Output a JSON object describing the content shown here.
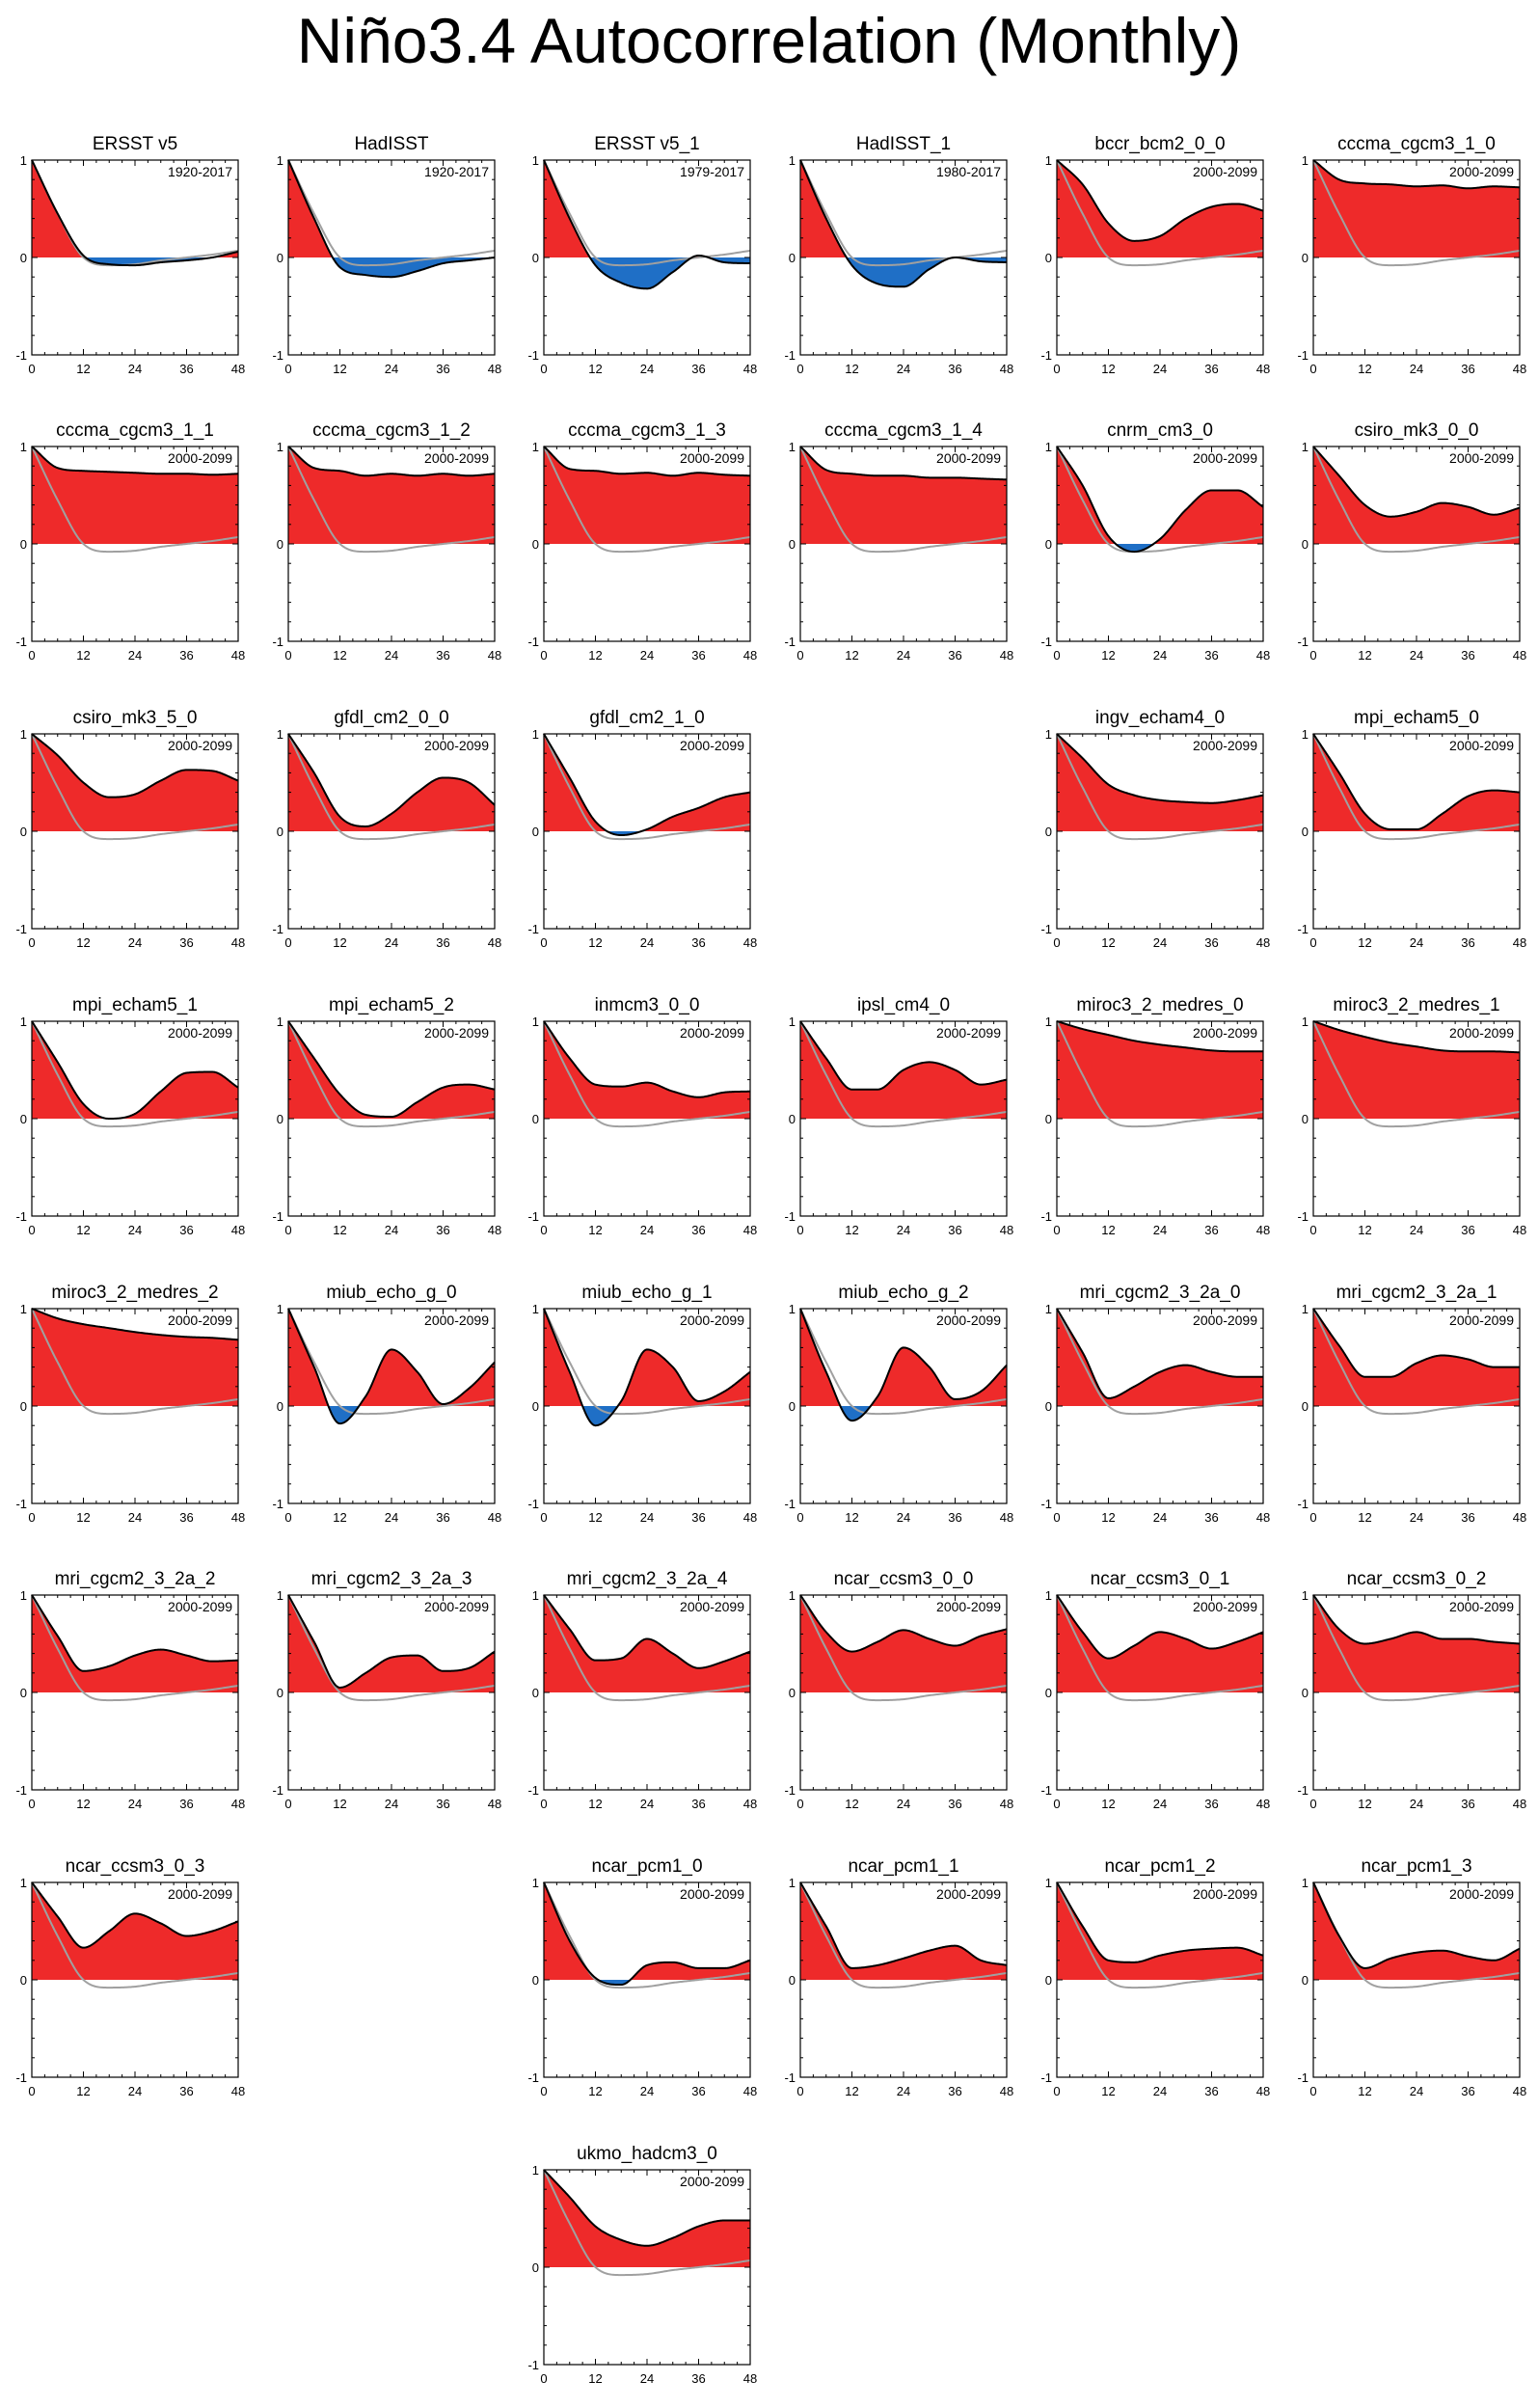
{
  "title": "Niño3.4 Autocorrelation (Monthly)",
  "colors": {
    "positive": "#ee2a2a",
    "negative": "#1f6fc6",
    "reference": "#a0a0a0",
    "curve": "#000000"
  },
  "chart_data": {
    "type": "area",
    "x_ticks": [
      0,
      12,
      24,
      36,
      48
    ],
    "y_ticks": [
      1,
      0,
      -1
    ],
    "xlim": [
      0,
      48
    ],
    "ylim": [
      -1,
      1
    ],
    "grid": false,
    "reference_curve": {
      "x": [
        0,
        6,
        12,
        18,
        24,
        30,
        36,
        42,
        48
      ],
      "y": [
        1,
        0.45,
        0.0,
        -0.08,
        -0.07,
        -0.03,
        0.0,
        0.03,
        0.07
      ]
    },
    "panels": [
      {
        "name": "ERSST v5",
        "period": "1920-2017",
        "row": 0,
        "col": 0,
        "x": [
          0,
          6,
          12,
          18,
          24,
          30,
          36,
          42,
          48
        ],
        "y": [
          1,
          0.45,
          0.02,
          -0.07,
          -0.08,
          -0.05,
          -0.03,
          0.0,
          0.06
        ]
      },
      {
        "name": "HadISST",
        "period": "1920-2017",
        "row": 0,
        "col": 1,
        "x": [
          0,
          6,
          12,
          18,
          24,
          30,
          36,
          42,
          48
        ],
        "y": [
          1,
          0.4,
          -0.1,
          -0.18,
          -0.2,
          -0.14,
          -0.06,
          -0.03,
          0.0
        ]
      },
      {
        "name": "ERSST v5_1",
        "period": "1979-2017",
        "row": 0,
        "col": 2,
        "x": [
          0,
          6,
          12,
          18,
          24,
          30,
          36,
          42,
          48
        ],
        "y": [
          1,
          0.4,
          -0.08,
          -0.26,
          -0.32,
          -0.15,
          0.02,
          -0.05,
          -0.06
        ]
      },
      {
        "name": "HadISST_1",
        "period": "1980-2017",
        "row": 0,
        "col": 3,
        "x": [
          0,
          6,
          12,
          18,
          24,
          30,
          36,
          42,
          48
        ],
        "y": [
          1,
          0.4,
          -0.08,
          -0.27,
          -0.3,
          -0.12,
          0.0,
          -0.04,
          -0.05
        ]
      },
      {
        "name": "bccr_bcm2_0_0",
        "period": "2000-2099",
        "row": 0,
        "col": 4,
        "x": [
          0,
          6,
          12,
          18,
          24,
          30,
          36,
          42,
          48
        ],
        "y": [
          1,
          0.75,
          0.35,
          0.17,
          0.22,
          0.4,
          0.52,
          0.55,
          0.48
        ]
      },
      {
        "name": "cccma_cgcm3_1_0",
        "period": "2000-2099",
        "row": 0,
        "col": 5,
        "x": [
          0,
          6,
          12,
          18,
          24,
          30,
          36,
          42,
          48
        ],
        "y": [
          1,
          0.8,
          0.76,
          0.75,
          0.73,
          0.74,
          0.71,
          0.73,
          0.72
        ]
      },
      {
        "name": "cccma_cgcm3_1_1",
        "period": "2000-2099",
        "row": 1,
        "col": 0,
        "x": [
          0,
          6,
          12,
          18,
          24,
          30,
          36,
          42,
          48
        ],
        "y": [
          1,
          0.78,
          0.75,
          0.74,
          0.73,
          0.72,
          0.72,
          0.71,
          0.72
        ]
      },
      {
        "name": "cccma_cgcm3_1_2",
        "period": "2000-2099",
        "row": 1,
        "col": 1,
        "x": [
          0,
          6,
          12,
          18,
          24,
          30,
          36,
          42,
          48
        ],
        "y": [
          1,
          0.78,
          0.75,
          0.7,
          0.72,
          0.7,
          0.72,
          0.7,
          0.72
        ]
      },
      {
        "name": "cccma_cgcm3_1_3",
        "period": "2000-2099",
        "row": 1,
        "col": 2,
        "x": [
          0,
          6,
          12,
          18,
          24,
          30,
          36,
          42,
          48
        ],
        "y": [
          1,
          0.77,
          0.75,
          0.72,
          0.73,
          0.7,
          0.73,
          0.71,
          0.7
        ]
      },
      {
        "name": "cccma_cgcm3_1_4",
        "period": "2000-2099",
        "row": 1,
        "col": 3,
        "x": [
          0,
          6,
          12,
          18,
          24,
          30,
          36,
          42,
          48
        ],
        "y": [
          1,
          0.76,
          0.72,
          0.7,
          0.7,
          0.68,
          0.68,
          0.67,
          0.66
        ]
      },
      {
        "name": "cnrm_cm3_0",
        "period": "2000-2099",
        "row": 1,
        "col": 4,
        "x": [
          0,
          6,
          12,
          18,
          24,
          30,
          36,
          42,
          48
        ],
        "y": [
          1,
          0.6,
          0.08,
          -0.08,
          0.05,
          0.35,
          0.55,
          0.55,
          0.38
        ]
      },
      {
        "name": "csiro_mk3_0_0",
        "period": "2000-2099",
        "row": 1,
        "col": 5,
        "x": [
          0,
          6,
          12,
          18,
          24,
          30,
          36,
          42,
          48
        ],
        "y": [
          1,
          0.7,
          0.4,
          0.28,
          0.33,
          0.42,
          0.38,
          0.3,
          0.37
        ]
      },
      {
        "name": "csiro_mk3_5_0",
        "period": "2000-2099",
        "row": 2,
        "col": 0,
        "x": [
          0,
          6,
          12,
          18,
          24,
          30,
          36,
          42,
          48
        ],
        "y": [
          1,
          0.78,
          0.5,
          0.35,
          0.38,
          0.52,
          0.63,
          0.62,
          0.52
        ]
      },
      {
        "name": "gfdl_cm2_0_0",
        "period": "2000-2099",
        "row": 2,
        "col": 1,
        "x": [
          0,
          6,
          12,
          18,
          24,
          30,
          36,
          42,
          48
        ],
        "y": [
          1,
          0.6,
          0.15,
          0.05,
          0.18,
          0.4,
          0.55,
          0.5,
          0.27
        ]
      },
      {
        "name": "gfdl_cm2_1_0",
        "period": "2000-2099",
        "row": 2,
        "col": 2,
        "x": [
          0,
          6,
          12,
          18,
          24,
          30,
          36,
          42,
          48
        ],
        "y": [
          1,
          0.55,
          0.1,
          -0.04,
          0.02,
          0.15,
          0.24,
          0.35,
          0.4
        ]
      },
      {
        "name": "ingv_echam4_0",
        "period": "2000-2099",
        "row": 2,
        "col": 4,
        "x": [
          0,
          6,
          12,
          18,
          24,
          30,
          36,
          42,
          48
        ],
        "y": [
          1,
          0.75,
          0.48,
          0.37,
          0.32,
          0.3,
          0.29,
          0.32,
          0.37
        ]
      },
      {
        "name": "mpi_echam5_0",
        "period": "2000-2099",
        "row": 2,
        "col": 5,
        "x": [
          0,
          6,
          12,
          18,
          24,
          30,
          36,
          42,
          48
        ],
        "y": [
          1,
          0.6,
          0.18,
          0.02,
          0.02,
          0.18,
          0.36,
          0.42,
          0.4
        ]
      },
      {
        "name": "mpi_echam5_1",
        "period": "2000-2099",
        "row": 3,
        "col": 0,
        "x": [
          0,
          6,
          12,
          18,
          24,
          30,
          36,
          42,
          48
        ],
        "y": [
          1,
          0.58,
          0.15,
          0.0,
          0.05,
          0.28,
          0.47,
          0.48,
          0.32
        ]
      },
      {
        "name": "mpi_echam5_2",
        "period": "2000-2099",
        "row": 3,
        "col": 1,
        "x": [
          0,
          6,
          12,
          18,
          24,
          30,
          36,
          42,
          48
        ],
        "y": [
          1,
          0.62,
          0.25,
          0.04,
          0.02,
          0.17,
          0.32,
          0.35,
          0.3
        ]
      },
      {
        "name": "inmcm3_0_0",
        "period": "2000-2099",
        "row": 3,
        "col": 2,
        "x": [
          0,
          6,
          12,
          18,
          24,
          30,
          36,
          42,
          48
        ],
        "y": [
          1,
          0.62,
          0.35,
          0.33,
          0.37,
          0.28,
          0.22,
          0.27,
          0.28
        ]
      },
      {
        "name": "ipsl_cm4_0",
        "period": "2000-2099",
        "row": 3,
        "col": 3,
        "x": [
          0,
          6,
          12,
          18,
          24,
          30,
          36,
          42,
          48
        ],
        "y": [
          1,
          0.62,
          0.3,
          0.3,
          0.5,
          0.58,
          0.5,
          0.35,
          0.4
        ]
      },
      {
        "name": "miroc3_2_medres_0",
        "period": "2000-2099",
        "row": 3,
        "col": 4,
        "x": [
          0,
          6,
          12,
          18,
          24,
          30,
          36,
          42,
          48
        ],
        "y": [
          1,
          0.92,
          0.86,
          0.8,
          0.76,
          0.73,
          0.7,
          0.69,
          0.69
        ]
      },
      {
        "name": "miroc3_2_medres_1",
        "period": "2000-2099",
        "row": 3,
        "col": 5,
        "x": [
          0,
          6,
          12,
          18,
          24,
          30,
          36,
          42,
          48
        ],
        "y": [
          1,
          0.91,
          0.84,
          0.78,
          0.74,
          0.7,
          0.69,
          0.69,
          0.68
        ]
      },
      {
        "name": "miroc3_2_medres_2",
        "period": "2000-2099",
        "row": 4,
        "col": 0,
        "x": [
          0,
          6,
          12,
          18,
          24,
          30,
          36,
          42,
          48
        ],
        "y": [
          1,
          0.9,
          0.84,
          0.8,
          0.76,
          0.73,
          0.71,
          0.7,
          0.68
        ]
      },
      {
        "name": "miub_echo_g_0",
        "period": "2000-2099",
        "row": 4,
        "col": 1,
        "x": [
          0,
          6,
          12,
          18,
          24,
          30,
          36,
          42,
          48
        ],
        "y": [
          1,
          0.4,
          -0.18,
          0.1,
          0.58,
          0.35,
          0.02,
          0.18,
          0.45
        ]
      },
      {
        "name": "miub_echo_g_1",
        "period": "2000-2099",
        "row": 4,
        "col": 2,
        "x": [
          0,
          6,
          12,
          18,
          24,
          30,
          36,
          42,
          48
        ],
        "y": [
          1,
          0.35,
          -0.2,
          0.05,
          0.58,
          0.4,
          0.05,
          0.15,
          0.35
        ]
      },
      {
        "name": "miub_echo_g_2",
        "period": "2000-2099",
        "row": 4,
        "col": 3,
        "x": [
          0,
          6,
          12,
          18,
          24,
          30,
          36,
          42,
          48
        ],
        "y": [
          1,
          0.35,
          -0.15,
          0.1,
          0.6,
          0.4,
          0.07,
          0.15,
          0.42
        ]
      },
      {
        "name": "mri_cgcm2_3_2a_0",
        "period": "2000-2099",
        "row": 4,
        "col": 4,
        "x": [
          0,
          6,
          12,
          18,
          24,
          30,
          36,
          42,
          48
        ],
        "y": [
          1,
          0.55,
          0.08,
          0.2,
          0.35,
          0.42,
          0.35,
          0.3,
          0.3
        ]
      },
      {
        "name": "mri_cgcm2_3_2a_1",
        "period": "2000-2099",
        "row": 4,
        "col": 5,
        "x": [
          0,
          6,
          12,
          18,
          24,
          30,
          36,
          42,
          48
        ],
        "y": [
          1,
          0.62,
          0.3,
          0.3,
          0.44,
          0.52,
          0.48,
          0.4,
          0.4
        ]
      },
      {
        "name": "mri_cgcm2_3_2a_2",
        "period": "2000-2099",
        "row": 5,
        "col": 0,
        "x": [
          0,
          6,
          12,
          18,
          24,
          30,
          36,
          42,
          48
        ],
        "y": [
          1,
          0.58,
          0.22,
          0.27,
          0.38,
          0.44,
          0.38,
          0.32,
          0.33
        ]
      },
      {
        "name": "mri_cgcm2_3_2a_3",
        "period": "2000-2099",
        "row": 5,
        "col": 1,
        "x": [
          0,
          6,
          12,
          18,
          24,
          30,
          36,
          42,
          48
        ],
        "y": [
          1,
          0.52,
          0.05,
          0.2,
          0.36,
          0.38,
          0.22,
          0.25,
          0.42
        ]
      },
      {
        "name": "mri_cgcm2_3_2a_4",
        "period": "2000-2099",
        "row": 5,
        "col": 2,
        "x": [
          0,
          6,
          12,
          18,
          24,
          30,
          36,
          42,
          48
        ],
        "y": [
          1,
          0.65,
          0.33,
          0.35,
          0.55,
          0.4,
          0.25,
          0.32,
          0.42
        ]
      },
      {
        "name": "ncar_ccsm3_0_0",
        "period": "2000-2099",
        "row": 5,
        "col": 3,
        "x": [
          0,
          6,
          12,
          18,
          24,
          30,
          36,
          42,
          48
        ],
        "y": [
          1,
          0.62,
          0.42,
          0.52,
          0.64,
          0.55,
          0.48,
          0.58,
          0.65
        ]
      },
      {
        "name": "ncar_ccsm3_0_1",
        "period": "2000-2099",
        "row": 5,
        "col": 4,
        "x": [
          0,
          6,
          12,
          18,
          24,
          30,
          36,
          42,
          48
        ],
        "y": [
          1,
          0.62,
          0.35,
          0.48,
          0.62,
          0.55,
          0.45,
          0.52,
          0.62
        ]
      },
      {
        "name": "ncar_ccsm3_0_2",
        "period": "2000-2099",
        "row": 5,
        "col": 5,
        "x": [
          0,
          6,
          12,
          18,
          24,
          30,
          36,
          42,
          48
        ],
        "y": [
          1,
          0.65,
          0.5,
          0.55,
          0.62,
          0.55,
          0.55,
          0.52,
          0.5
        ]
      },
      {
        "name": "ncar_ccsm3_0_3",
        "period": "2000-2099",
        "row": 6,
        "col": 0,
        "x": [
          0,
          6,
          12,
          18,
          24,
          30,
          36,
          42,
          48
        ],
        "y": [
          1,
          0.65,
          0.33,
          0.5,
          0.68,
          0.58,
          0.45,
          0.5,
          0.6
        ]
      },
      {
        "name": "ncar_pcm1_0",
        "period": "2000-2099",
        "row": 6,
        "col": 2,
        "x": [
          0,
          6,
          12,
          18,
          24,
          30,
          36,
          42,
          48
        ],
        "y": [
          1,
          0.4,
          0.02,
          -0.05,
          0.15,
          0.18,
          0.12,
          0.12,
          0.2
        ]
      },
      {
        "name": "ncar_pcm1_1",
        "period": "2000-2099",
        "row": 6,
        "col": 3,
        "x": [
          0,
          6,
          12,
          18,
          24,
          30,
          36,
          42,
          48
        ],
        "y": [
          1,
          0.55,
          0.12,
          0.15,
          0.22,
          0.3,
          0.35,
          0.2,
          0.15
        ]
      },
      {
        "name": "ncar_pcm1_2",
        "period": "2000-2099",
        "row": 6,
        "col": 4,
        "x": [
          0,
          6,
          12,
          18,
          24,
          30,
          36,
          42,
          48
        ],
        "y": [
          1,
          0.55,
          0.2,
          0.18,
          0.25,
          0.3,
          0.32,
          0.33,
          0.25
        ]
      },
      {
        "name": "ncar_pcm1_3",
        "period": "2000-2099",
        "row": 6,
        "col": 5,
        "x": [
          0,
          6,
          12,
          18,
          24,
          30,
          36,
          42,
          48
        ],
        "y": [
          1,
          0.45,
          0.12,
          0.22,
          0.28,
          0.3,
          0.24,
          0.2,
          0.32
        ]
      },
      {
        "name": "ukmo_hadcm3_0",
        "period": "2000-2099",
        "row": 7,
        "col": 2,
        "x": [
          0,
          6,
          12,
          18,
          24,
          30,
          36,
          42,
          48
        ],
        "y": [
          1,
          0.72,
          0.42,
          0.28,
          0.22,
          0.3,
          0.42,
          0.48,
          0.48
        ]
      }
    ]
  }
}
